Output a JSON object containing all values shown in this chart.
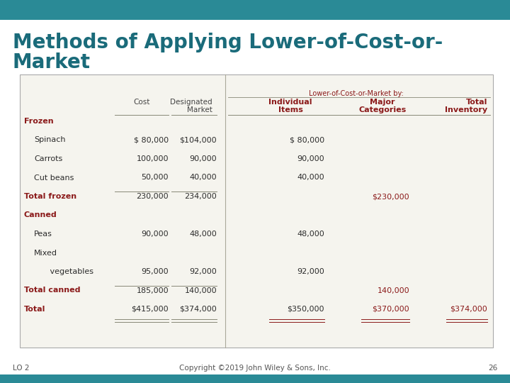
{
  "title_line1": "Methods of Applying Lower-of-Cost-or-",
  "title_line2": "Market",
  "title_color": "#1a6b7a",
  "title_fontsize": 20,
  "header_bar_color": "#2a8a96",
  "slide_bg": "#ffffff",
  "table_bg": "#f5f4ee",
  "lo_text": "LO 2",
  "copyright_text": "Copyright ©2019 John Wiley & Sons, Inc.",
  "page_num": "26",
  "bottom_text_color": "#555555",
  "col_header_color": "#8b1a1a",
  "row_label_color": "#2c2c2c",
  "value_color": "#2c2c2c",
  "total_color": "#8b1a1a",
  "divider_color": "#aaa99a",
  "underline_color": "#888877",
  "rows": [
    {
      "label": "Frozen",
      "indent": 0,
      "bold": true,
      "cost": "",
      "mkt": "",
      "ind": "",
      "maj": "",
      "tot": ""
    },
    {
      "label": "Spinach",
      "indent": 1,
      "bold": false,
      "cost": "$ 80,000",
      "mkt": "$104,000",
      "ind": "$ 80,000",
      "maj": "",
      "tot": ""
    },
    {
      "label": "Carrots",
      "indent": 1,
      "bold": false,
      "cost": "100,000",
      "mkt": "90,000",
      "ind": "90,000",
      "maj": "",
      "tot": ""
    },
    {
      "label": "Cut beans",
      "indent": 1,
      "bold": false,
      "cost": "50,000",
      "mkt": "40,000",
      "ind": "40,000",
      "maj": "",
      "tot": ""
    },
    {
      "label": "Total frozen",
      "indent": 0,
      "bold": true,
      "cost": "230,000",
      "mkt": "234,000",
      "ind": "",
      "maj": "$230,000",
      "tot": ""
    },
    {
      "label": "Canned",
      "indent": 0,
      "bold": true,
      "cost": "",
      "mkt": "",
      "ind": "",
      "maj": "",
      "tot": ""
    },
    {
      "label": "Peas",
      "indent": 1,
      "bold": false,
      "cost": "90,000",
      "mkt": "48,000",
      "ind": "48,000",
      "maj": "",
      "tot": ""
    },
    {
      "label": "Mixed",
      "indent": 1,
      "bold": false,
      "cost": "",
      "mkt": "",
      "ind": "",
      "maj": "",
      "tot": ""
    },
    {
      "label": "   vegetables",
      "indent": 2,
      "bold": false,
      "cost": "95,000",
      "mkt": "92,000",
      "ind": "92,000",
      "maj": "",
      "tot": ""
    },
    {
      "label": "Total canned",
      "indent": 0,
      "bold": true,
      "cost": "185,000",
      "mkt": "140,000",
      "ind": "",
      "maj": "140,000",
      "tot": ""
    },
    {
      "label": "Total",
      "indent": 0,
      "bold": true,
      "cost": "$415,000",
      "mkt": "$374,000",
      "ind": "$350,000",
      "maj": "$370,000",
      "tot": "$374,000"
    }
  ]
}
